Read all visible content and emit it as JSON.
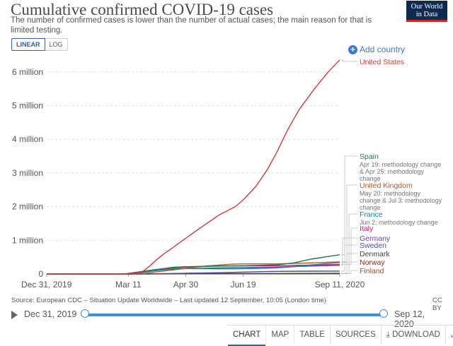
{
  "header": {
    "title": "Cumulative confirmed COVID-19 cases",
    "subtitle": "The number of confirmed cases is lower than the number of actual cases; the main reason for that is limited testing.",
    "logo_line1": "Our World",
    "logo_line2": "in Data"
  },
  "controls": {
    "linear_label": "LINEAR",
    "log_label": "LOG",
    "add_country_label": "Add country"
  },
  "chart_data": {
    "type": "line",
    "x_axis": {
      "ticks": [
        "Dec 31, 2019",
        "Mar 11",
        "Apr 30",
        "Jun 19",
        "Sep 11, 2020"
      ],
      "tick_days": [
        0,
        71,
        121,
        171,
        255
      ],
      "range_days": [
        0,
        255
      ]
    },
    "y_axis": {
      "ticks": [
        "0",
        "1 million",
        "2 million",
        "3 million",
        "4 million",
        "5 million",
        "6 million"
      ],
      "values": [
        0,
        1000000,
        2000000,
        3000000,
        4000000,
        5000000,
        6000000
      ],
      "ylim": [
        0,
        6500000
      ]
    },
    "grid": true,
    "series": [
      {
        "name": "United States",
        "color": "#d23b3b",
        "points": [
          [
            0,
            0
          ],
          [
            50,
            15
          ],
          [
            66,
            1000
          ],
          [
            72,
            3000
          ],
          [
            78,
            19000
          ],
          [
            84,
            85000
          ],
          [
            90,
            245000
          ],
          [
            96,
            433000
          ],
          [
            102,
            600000
          ],
          [
            108,
            740000
          ],
          [
            114,
            890000
          ],
          [
            121,
            1060000
          ],
          [
            135,
            1400000
          ],
          [
            150,
            1750000
          ],
          [
            164,
            2000000
          ],
          [
            171,
            2200000
          ],
          [
            182,
            2600000
          ],
          [
            192,
            3100000
          ],
          [
            200,
            3600000
          ],
          [
            210,
            4300000
          ],
          [
            220,
            4900000
          ],
          [
            233,
            5500000
          ],
          [
            245,
            6000000
          ],
          [
            255,
            6360000
          ]
        ]
      },
      {
        "name": "Spain",
        "color": "#1a7a49",
        "points": [
          [
            0,
            0
          ],
          [
            60,
            100
          ],
          [
            70,
            2000
          ],
          [
            80,
            40000
          ],
          [
            90,
            110000
          ],
          [
            100,
            150000
          ],
          [
            110,
            200000
          ],
          [
            121,
            215000
          ],
          [
            150,
            240000
          ],
          [
            171,
            245000
          ],
          [
            200,
            270000
          ],
          [
            215,
            330000
          ],
          [
            230,
            440000
          ],
          [
            245,
            520000
          ],
          [
            255,
            570000
          ]
        ]
      },
      {
        "name": "United Kingdom",
        "color": "#c0541e",
        "points": [
          [
            0,
            0
          ],
          [
            60,
            30
          ],
          [
            75,
            1500
          ],
          [
            85,
            17000
          ],
          [
            95,
            60000
          ],
          [
            105,
            100000
          ],
          [
            115,
            140000
          ],
          [
            121,
            170000
          ],
          [
            140,
            240000
          ],
          [
            160,
            290000
          ],
          [
            171,
            300000
          ],
          [
            200,
            300000
          ],
          [
            230,
            330000
          ],
          [
            255,
            360000
          ]
        ]
      },
      {
        "name": "France",
        "color": "#178989",
        "points": [
          [
            0,
            0
          ],
          [
            60,
            200
          ],
          [
            70,
            2000
          ],
          [
            80,
            30000
          ],
          [
            90,
            80000
          ],
          [
            100,
            130000
          ],
          [
            110,
            155000
          ],
          [
            121,
            165000
          ],
          [
            150,
            150000
          ],
          [
            171,
            155000
          ],
          [
            200,
            180000
          ],
          [
            220,
            230000
          ],
          [
            240,
            300000
          ],
          [
            255,
            340000
          ]
        ]
      },
      {
        "name": "Italy",
        "color": "#c51e7a",
        "points": [
          [
            0,
            0
          ],
          [
            50,
            3
          ],
          [
            60,
            1700
          ],
          [
            70,
            10000
          ],
          [
            80,
            60000
          ],
          [
            90,
            110000
          ],
          [
            100,
            150000
          ],
          [
            110,
            180000
          ],
          [
            121,
            205000
          ],
          [
            150,
            235000
          ],
          [
            171,
            238000
          ],
          [
            200,
            245000
          ],
          [
            230,
            265000
          ],
          [
            255,
            285000
          ]
        ]
      },
      {
        "name": "Germany",
        "color": "#6c3fa0",
        "points": [
          [
            0,
            0
          ],
          [
            60,
            200
          ],
          [
            70,
            2000
          ],
          [
            80,
            30000
          ],
          [
            90,
            80000
          ],
          [
            100,
            120000
          ],
          [
            110,
            145000
          ],
          [
            121,
            160000
          ],
          [
            150,
            183000
          ],
          [
            171,
            190000
          ],
          [
            200,
            205000
          ],
          [
            230,
            235000
          ],
          [
            255,
            258000
          ]
        ]
      },
      {
        "name": "Sweden",
        "color": "#3a4fa8",
        "points": [
          [
            0,
            0
          ],
          [
            70,
            500
          ],
          [
            90,
            6000
          ],
          [
            110,
            15000
          ],
          [
            121,
            21000
          ],
          [
            150,
            38000
          ],
          [
            171,
            57000
          ],
          [
            200,
            77000
          ],
          [
            230,
            84000
          ],
          [
            255,
            87000
          ]
        ]
      },
      {
        "name": "Denmark",
        "color": "#404040",
        "points": [
          [
            0,
            0
          ],
          [
            70,
            300
          ],
          [
            90,
            3000
          ],
          [
            121,
            9300
          ],
          [
            171,
            12500
          ],
          [
            200,
            13500
          ],
          [
            230,
            16000
          ],
          [
            255,
            19000
          ]
        ]
      },
      {
        "name": "Norway",
        "color": "#8a2a1e",
        "points": [
          [
            0,
            0
          ],
          [
            70,
            400
          ],
          [
            90,
            4500
          ],
          [
            121,
            7700
          ],
          [
            171,
            8800
          ],
          [
            200,
            9000
          ],
          [
            230,
            10000
          ],
          [
            255,
            12000
          ]
        ]
      },
      {
        "name": "Finland",
        "color": "#b64a18",
        "points": [
          [
            0,
            0
          ],
          [
            70,
            40
          ],
          [
            90,
            1400
          ],
          [
            121,
            5000
          ],
          [
            171,
            7100
          ],
          [
            200,
            7300
          ],
          [
            230,
            7600
          ],
          [
            255,
            8200
          ]
        ]
      }
    ],
    "labels": [
      {
        "name": "United States",
        "color": "#d23b3b"
      },
      {
        "name": "Spain",
        "color": "#1a7a49",
        "note": "Apr 19: methodology change & Apr 25: methodology change"
      },
      {
        "name": "United Kingdom",
        "color": "#c0541e",
        "note": "May 20: methodology change & Jul 3: methodology change"
      },
      {
        "name": "France",
        "color": "#178989",
        "note": "Jun 2: methodology change"
      },
      {
        "name": "Italy",
        "color": "#c51e7a"
      },
      {
        "name": "Germany",
        "color": "#6c3fa0"
      },
      {
        "name": "Sweden",
        "color": "#3a4fa8"
      },
      {
        "name": "Denmark",
        "color": "#404040"
      },
      {
        "name": "Norway",
        "color": "#8a2a1e"
      },
      {
        "name": "Finland",
        "color": "#b64a18"
      }
    ]
  },
  "footer": {
    "source": "Source: European CDC – Situation Update Worldwide – Last updated 12 September, 10:05 (London time)",
    "license": "CC BY",
    "timeline_start": "Dec 31, 2019",
    "timeline_end": "Sep 12, 2020"
  },
  "tabs": {
    "chart": "CHART",
    "map": "MAP",
    "table": "TABLE",
    "sources": "SOURCES",
    "download": "DOWNLOAD"
  },
  "colors": {
    "accent": "#3b78d6",
    "logo_bg": "#0d2a51",
    "logo_stripe": "#ce261e"
  }
}
